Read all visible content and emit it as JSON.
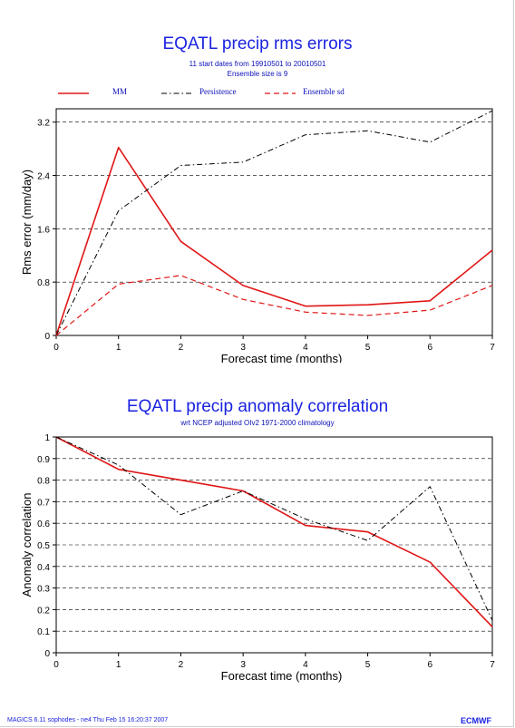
{
  "chart_data": [
    {
      "type": "line",
      "title": "EQATL precip rms errors",
      "subtitle_lines": [
        "11 start dates from 19910501 to 20010501",
        "Ensemble size is  9"
      ],
      "xlabel": "Forecast time (months)",
      "ylabel": "Rms error (mm/day)",
      "xlim": [
        0,
        7
      ],
      "ylim": [
        0,
        3.4
      ],
      "xticks": [
        "0",
        "1",
        "2",
        "3",
        "4",
        "5",
        "6",
        "7"
      ],
      "yticks": [
        {
          "value": 0,
          "label": "0"
        },
        {
          "value": 0.8,
          "label": "0.8"
        },
        {
          "value": 1.6,
          "label": "1.6"
        },
        {
          "value": 2.4,
          "label": "2.4"
        },
        {
          "value": 3.2,
          "label": "3.2"
        }
      ],
      "grid": "horizontal dashed",
      "legend_position": "top",
      "x": [
        0,
        1,
        2,
        3,
        4,
        5,
        6,
        7
      ],
      "series": [
        {
          "name": "MM",
          "color": "#e01616",
          "style": "solid",
          "values": [
            0,
            2.82,
            1.41,
            0.75,
            0.44,
            0.46,
            0.52,
            1.28
          ]
        },
        {
          "name": "Persistence",
          "color": "#000000",
          "style": "dash-dot",
          "values": [
            0,
            1.87,
            2.55,
            2.6,
            3.01,
            3.07,
            2.9,
            3.37
          ]
        },
        {
          "name": "Ensemble sd",
          "color": "#e01616",
          "style": "dashed",
          "values": [
            0,
            0.77,
            0.9,
            0.54,
            0.35,
            0.3,
            0.38,
            0.75
          ]
        }
      ]
    },
    {
      "type": "line",
      "title": "EQATL precip anomaly correlation",
      "subtitle_lines": [
        "wrt NCEP adjusted OIv2 1971-2000 climatology"
      ],
      "xlabel": "Forecast time (months)",
      "ylabel": "Anomaly correlation",
      "xlim": [
        0,
        7
      ],
      "ylim": [
        0,
        1
      ],
      "xticks": [
        "0",
        "1",
        "2",
        "3",
        "4",
        "5",
        "6",
        "7"
      ],
      "yticks": [
        {
          "value": 0,
          "label": "0"
        },
        {
          "value": 0.1,
          "label": "0.1"
        },
        {
          "value": 0.2,
          "label": "0.2"
        },
        {
          "value": 0.3,
          "label": "0.3"
        },
        {
          "value": 0.4,
          "label": "0.4"
        },
        {
          "value": 0.5,
          "label": "0.5"
        },
        {
          "value": 0.6,
          "label": "0.6"
        },
        {
          "value": 0.7,
          "label": "0.7"
        },
        {
          "value": 0.8,
          "label": "0.8"
        },
        {
          "value": 0.9,
          "label": "0.9"
        },
        {
          "value": 1,
          "label": "1"
        }
      ],
      "grid": "horizontal dashed",
      "x": [
        0,
        1,
        2,
        3,
        4,
        5,
        6,
        7
      ],
      "series": [
        {
          "color": "#e01616",
          "style": "solid",
          "values": [
            1.0,
            0.85,
            0.8,
            0.75,
            0.59,
            0.56,
            0.42,
            0.12
          ]
        },
        {
          "color": "#000000",
          "style": "dash-dot",
          "values": [
            1.0,
            0.87,
            0.64,
            0.75,
            0.62,
            0.52,
            0.77,
            0.15
          ]
        }
      ]
    }
  ],
  "footer": "MAGICS 6.11 sophodes - ne4 Thu Feb 15 16:20:37 2007",
  "logo_text": "ECMWF"
}
